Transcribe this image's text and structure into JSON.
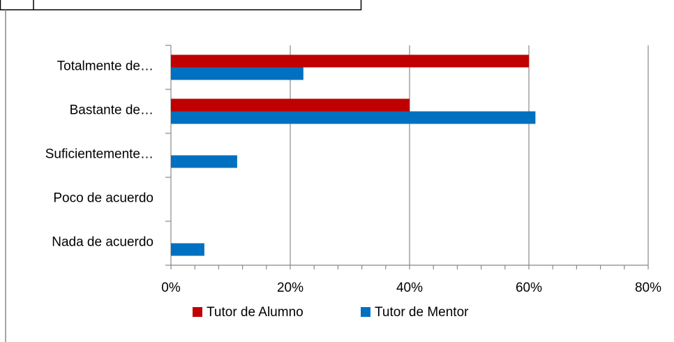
{
  "chart_data": {
    "type": "hbar",
    "categories": [
      "Totalmente de…",
      "Bastante de…",
      "Suficientemente…",
      "Poco de acuerdo",
      "Nada de acuerdo"
    ],
    "series": [
      {
        "name": "Tutor de Alumno",
        "color": "#c00000",
        "values": [
          60,
          40,
          0,
          0,
          0
        ]
      },
      {
        "name": "Tutor de Mentor",
        "color": "#0070c0",
        "values": [
          22.2,
          61.1,
          11.1,
          0,
          5.6
        ]
      }
    ],
    "xlim": [
      0,
      80
    ],
    "xticks": [
      {
        "value": 0,
        "label": "0%"
      },
      {
        "value": 20,
        "label": "20%"
      },
      {
        "value": 40,
        "label": "40%"
      },
      {
        "value": 60,
        "label": "60%"
      },
      {
        "value": 80,
        "label": "80%"
      }
    ],
    "grid": true,
    "legend": "bottom"
  }
}
